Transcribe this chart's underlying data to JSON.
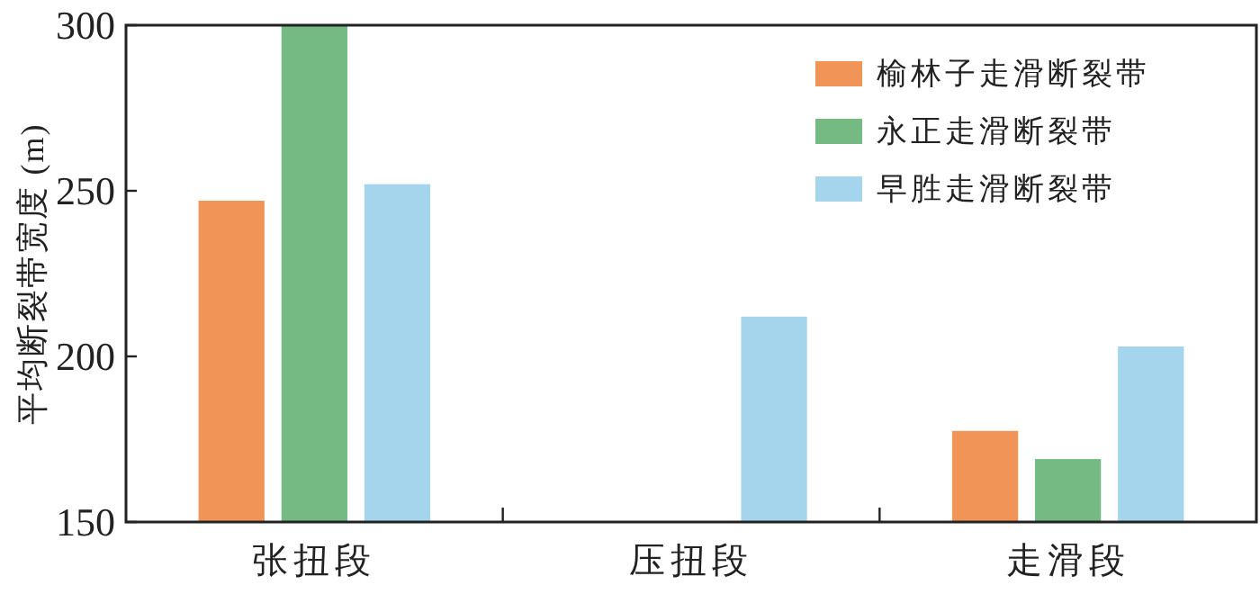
{
  "chart_data": {
    "type": "bar",
    "ylabel": "平均断裂带宽度 (m)",
    "categories": [
      "张扭段",
      "压扭段",
      "走滑段"
    ],
    "series": [
      {
        "name": "榆林子走滑断裂带",
        "color": "#f09557",
        "values": [
          247,
          null,
          177.5
        ]
      },
      {
        "name": "永正走滑断裂带",
        "color": "#74ba82",
        "values": [
          300,
          null,
          169
        ]
      },
      {
        "name": "早胜走滑断裂带",
        "color": "#a5d5ed",
        "values": [
          252,
          212,
          203
        ]
      }
    ],
    "ylim": [
      150,
      300
    ],
    "yticks": [
      150,
      200,
      250,
      300
    ],
    "legend": "top right"
  }
}
